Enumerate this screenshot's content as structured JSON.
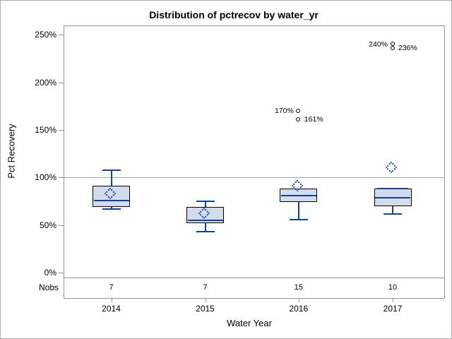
{
  "chart_data": {
    "type": "boxplot",
    "title": "Distribution of pctrecov by water_yr",
    "xlabel": "Water Year",
    "ylabel": "Pct Recovery",
    "nobs_label": "Nobs",
    "y_unit": "%",
    "y_ticks": [
      0,
      50,
      100,
      150,
      200,
      250
    ],
    "ylim": [
      0,
      265
    ],
    "reference_line_pct": 100,
    "grid": "off",
    "groups": [
      {
        "year": "2014",
        "nobs": "7",
        "min": 67,
        "q1": 69,
        "median": 76,
        "q3": 91,
        "max": 108,
        "mean": 82,
        "outliers": []
      },
      {
        "year": "2015",
        "nobs": "7",
        "min": 43,
        "q1": 52,
        "median": 55,
        "q3": 69,
        "max": 75,
        "mean": 61,
        "outliers": []
      },
      {
        "year": "2016",
        "nobs": "15",
        "min": 56,
        "q1": 74,
        "median": 81,
        "q3": 88,
        "max": 88,
        "mean": 90,
        "outliers": [
          {
            "value": 170,
            "label": "170%",
            "label_side": "left"
          },
          {
            "value": 161,
            "label": "161%",
            "label_side": "right"
          }
        ]
      },
      {
        "year": "2017",
        "nobs": "10",
        "min": 62,
        "q1": 70,
        "median": 79,
        "q3": 88,
        "max": 88,
        "mean": 109,
        "max_cap_at_q3": true,
        "outliers": [
          {
            "value": 240,
            "label": "240%",
            "label_side": "left"
          },
          {
            "value": 236,
            "label": "236%",
            "label_side": "right"
          }
        ]
      }
    ],
    "colors": {
      "box_fill": "#d3dcea",
      "box_border": "#000000",
      "line_blue": "#16409e",
      "frame_gray": "#8f959a",
      "reference_gray": "#a3a8ad",
      "text": "#000000"
    }
  }
}
